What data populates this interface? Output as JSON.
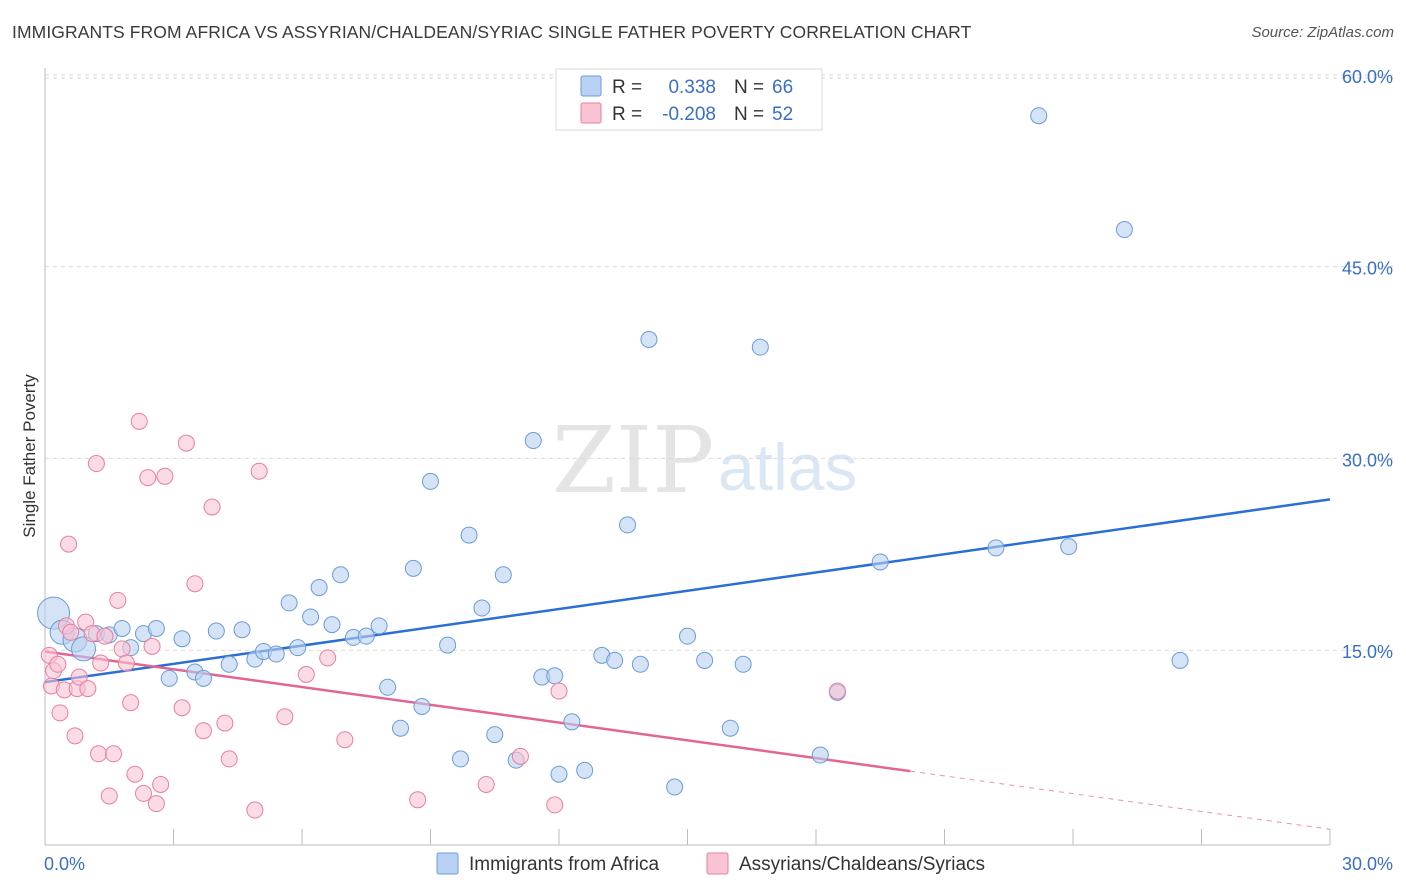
{
  "title": "IMMIGRANTS FROM AFRICA VS ASSYRIAN/CHALDEAN/SYRIAC SINGLE FATHER POVERTY CORRELATION CHART",
  "source": "Source: ZipAtlas.com",
  "watermark": {
    "zip": "ZIP",
    "atlas": "atlas"
  },
  "colors": {
    "blue_fill": "#b9d1f2",
    "blue_stroke": "#6a9bd8",
    "blue_line": "#2b6fd4",
    "pink_fill": "#f8c3d2",
    "pink_stroke": "#e87fa0",
    "pink_line": "#e26593",
    "tick_text": "#3a6fc4",
    "grid": "#d9d9d9"
  },
  "chart_data": {
    "type": "scatter",
    "title": "IMMIGRANTS FROM AFRICA VS ASSYRIAN/CHALDEAN/SYRIAC SINGLE FATHER POVERTY CORRELATION CHART",
    "xlabel": "",
    "ylabel": "Single Father Poverty",
    "xlim": [
      0,
      30
    ],
    "ylim": [
      0,
      60
    ],
    "x_tick_labels": [
      "0.0%",
      "30.0%"
    ],
    "y_ticks": [
      15,
      30,
      45,
      60
    ],
    "y_tick_labels": [
      "15.0%",
      "30.0%",
      "45.0%",
      "60.0%"
    ],
    "legend_position": "top-center",
    "legend": [
      {
        "name": "Immigrants from Africa",
        "r_label": "R =",
        "r_value": "0.338",
        "n_label": "N =",
        "n_value": "66"
      },
      {
        "name": "Assyrians/Chaldeans/Syriacs",
        "r_label": "R =",
        "r_value": "-0.208",
        "n_label": "N =",
        "n_value": "52"
      }
    ],
    "series": [
      {
        "name": "Immigrants from Africa",
        "trend": {
          "x": [
            0,
            30
          ],
          "y": [
            12.5,
            26.8
          ],
          "dashed_from": null
        },
        "points": [
          [
            0.2,
            17.9,
            1
          ],
          [
            0.4,
            16.4,
            1
          ],
          [
            0.7,
            15.8,
            1
          ],
          [
            0.9,
            15.1,
            1
          ],
          [
            1.2,
            16.3,
            0
          ],
          [
            1.5,
            16.2,
            0
          ],
          [
            1.8,
            16.7,
            0
          ],
          [
            2.0,
            15.2,
            0
          ],
          [
            2.3,
            16.3,
            0
          ],
          [
            2.6,
            16.7,
            0
          ],
          [
            2.9,
            12.8,
            0
          ],
          [
            3.2,
            15.9,
            0
          ],
          [
            3.5,
            13.3,
            0
          ],
          [
            3.7,
            12.8,
            0
          ],
          [
            4.0,
            16.5,
            0
          ],
          [
            4.3,
            13.9,
            0
          ],
          [
            4.6,
            16.6,
            0
          ],
          [
            4.9,
            14.3,
            0
          ],
          [
            5.1,
            14.9,
            0
          ],
          [
            5.4,
            14.7,
            0
          ],
          [
            5.7,
            18.7,
            0
          ],
          [
            5.9,
            15.2,
            0
          ],
          [
            6.2,
            17.6,
            0
          ],
          [
            6.4,
            19.9,
            0
          ],
          [
            6.7,
            17.0,
            0
          ],
          [
            6.9,
            20.9,
            0
          ],
          [
            7.2,
            16.0,
            0
          ],
          [
            7.5,
            16.1,
            0
          ],
          [
            7.8,
            16.9,
            0
          ],
          [
            8.0,
            12.1,
            0
          ],
          [
            8.3,
            8.9,
            0
          ],
          [
            8.6,
            21.4,
            0
          ],
          [
            8.8,
            10.6,
            0
          ],
          [
            9.0,
            28.2,
            0
          ],
          [
            9.4,
            15.4,
            0
          ],
          [
            9.7,
            6.5,
            0
          ],
          [
            9.9,
            24.0,
            0
          ],
          [
            10.2,
            18.3,
            0
          ],
          [
            10.5,
            8.4,
            0
          ],
          [
            10.7,
            20.9,
            0
          ],
          [
            11.0,
            6.4,
            0
          ],
          [
            11.4,
            31.4,
            0
          ],
          [
            11.6,
            12.9,
            0
          ],
          [
            11.9,
            13.0,
            0
          ],
          [
            12.0,
            5.3,
            0
          ],
          [
            12.3,
            9.4,
            0
          ],
          [
            12.6,
            5.6,
            0
          ],
          [
            13.0,
            14.6,
            0
          ],
          [
            13.3,
            14.2,
            0
          ],
          [
            13.6,
            24.8,
            0
          ],
          [
            13.9,
            13.9,
            0
          ],
          [
            14.1,
            39.3,
            0
          ],
          [
            14.7,
            4.3,
            0
          ],
          [
            15.0,
            16.1,
            0
          ],
          [
            15.4,
            14.2,
            0
          ],
          [
            16.0,
            8.9,
            0
          ],
          [
            16.3,
            13.9,
            0
          ],
          [
            16.7,
            38.7,
            0
          ],
          [
            18.1,
            6.8,
            0
          ],
          [
            18.5,
            11.7,
            0
          ],
          [
            19.5,
            21.9,
            0
          ],
          [
            22.2,
            23.0,
            0
          ],
          [
            23.2,
            56.8,
            0
          ],
          [
            23.9,
            23.1,
            0
          ],
          [
            25.2,
            47.9,
            0
          ],
          [
            26.5,
            14.2,
            0
          ]
        ]
      },
      {
        "name": "Assyrians/Chaldeans/Syriacs",
        "trend": {
          "x": [
            0,
            30
          ],
          "y": [
            14.9,
            1.0
          ],
          "dashed_from": 20.2
        },
        "points": [
          [
            0.1,
            14.6,
            0
          ],
          [
            0.15,
            12.2,
            0
          ],
          [
            0.2,
            13.4,
            0
          ],
          [
            0.3,
            13.9,
            0
          ],
          [
            0.35,
            10.1,
            0
          ],
          [
            0.45,
            11.9,
            0
          ],
          [
            0.5,
            16.9,
            0
          ],
          [
            0.55,
            23.3,
            0
          ],
          [
            0.6,
            16.4,
            0
          ],
          [
            0.7,
            8.3,
            0
          ],
          [
            0.75,
            12.0,
            0
          ],
          [
            0.8,
            12.9,
            0
          ],
          [
            0.95,
            17.2,
            0
          ],
          [
            1.0,
            12.0,
            0
          ],
          [
            1.1,
            16.3,
            0
          ],
          [
            1.2,
            29.6,
            0
          ],
          [
            1.25,
            6.9,
            0
          ],
          [
            1.3,
            14.0,
            0
          ],
          [
            1.4,
            16.1,
            0
          ],
          [
            1.5,
            3.6,
            0
          ],
          [
            1.6,
            6.9,
            0
          ],
          [
            1.7,
            18.9,
            0
          ],
          [
            1.8,
            15.1,
            0
          ],
          [
            1.9,
            14.0,
            0
          ],
          [
            2.0,
            10.9,
            0
          ],
          [
            2.1,
            5.3,
            0
          ],
          [
            2.2,
            32.9,
            0
          ],
          [
            2.3,
            3.8,
            0
          ],
          [
            2.4,
            28.5,
            0
          ],
          [
            2.5,
            15.3,
            0
          ],
          [
            2.6,
            3.0,
            0
          ],
          [
            2.7,
            4.5,
            0
          ],
          [
            2.8,
            28.6,
            0
          ],
          [
            3.2,
            10.5,
            0
          ],
          [
            3.3,
            31.2,
            0
          ],
          [
            3.5,
            20.2,
            0
          ],
          [
            3.7,
            8.7,
            0
          ],
          [
            3.9,
            26.2,
            0
          ],
          [
            4.2,
            9.3,
            0
          ],
          [
            4.3,
            6.5,
            0
          ],
          [
            4.9,
            2.5,
            0
          ],
          [
            5.0,
            29.0,
            0
          ],
          [
            5.6,
            9.8,
            0
          ],
          [
            6.1,
            13.1,
            0
          ],
          [
            6.6,
            14.4,
            0
          ],
          [
            7.0,
            8.0,
            0
          ],
          [
            8.7,
            3.3,
            0
          ],
          [
            10.3,
            4.5,
            0
          ],
          [
            11.1,
            6.7,
            0
          ],
          [
            11.9,
            2.9,
            0
          ],
          [
            12.0,
            11.8,
            0
          ],
          [
            18.5,
            11.8,
            0
          ]
        ]
      }
    ]
  }
}
